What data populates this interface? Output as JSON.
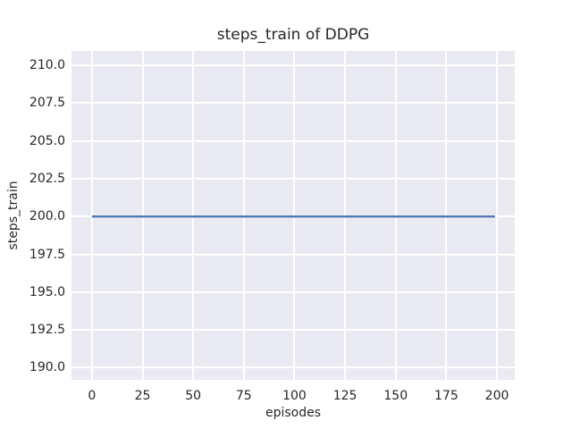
{
  "chart_data": {
    "type": "line",
    "title": "steps_train of DDPG",
    "xlabel": "episodes",
    "ylabel": "steps_train",
    "series": [
      {
        "name": "steps_train",
        "x": [
          0,
          199
        ],
        "y": [
          200,
          200
        ]
      }
    ],
    "xticks": {
      "values": [
        0,
        25,
        50,
        75,
        100,
        125,
        150,
        175,
        200
      ],
      "labels": [
        "0",
        "25",
        "50",
        "75",
        "100",
        "125",
        "150",
        "175",
        "200"
      ]
    },
    "yticks": {
      "values": [
        190,
        192.5,
        195,
        197.5,
        200,
        202.5,
        205,
        207.5,
        210
      ],
      "labels": [
        "190.0",
        "192.5",
        "195.0",
        "197.5",
        "200.0",
        "202.5",
        "205.0",
        "207.5",
        "210.0"
      ]
    },
    "xlim": [
      -10.1,
      208.8
    ],
    "ylim": [
      189.2,
      210.95
    ],
    "grid": true,
    "legend_position": "none",
    "colors": {
      "line": "#4c72b0",
      "axes_background": "#eaeaf2",
      "gridline": "#ffffff",
      "text": "#262626",
      "figure_background": "#ffffff"
    }
  }
}
